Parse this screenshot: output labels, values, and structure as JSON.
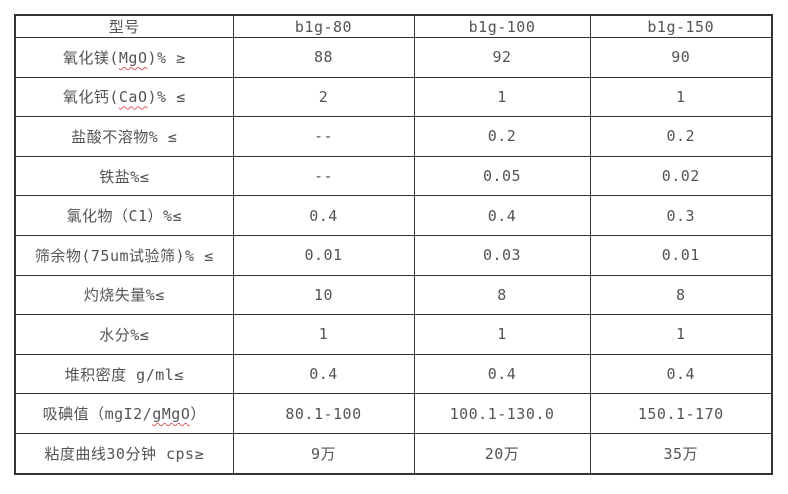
{
  "colors": {
    "border": "#333333",
    "text": "#545454",
    "spellcheck_underline": "#e06060",
    "background": "#ffffff"
  },
  "table": {
    "columns": [
      {
        "label": "型号"
      },
      {
        "label": "b1g-80"
      },
      {
        "label": "b1g-100"
      },
      {
        "label": "b1g-150"
      }
    ],
    "rows": [
      {
        "label": [
          {
            "text": "氧化镁("
          },
          {
            "text": "MgO",
            "spellcheck": true
          },
          {
            "text": ")% ≥"
          }
        ],
        "values": [
          "88",
          "92",
          "90"
        ]
      },
      {
        "label": [
          {
            "text": "氧化钙("
          },
          {
            "text": "CaO",
            "spellcheck": true
          },
          {
            "text": ")% ≤"
          }
        ],
        "values": [
          "2",
          "1",
          "1"
        ]
      },
      {
        "label": [
          {
            "text": "盐酸不溶物% ≤"
          }
        ],
        "values": [
          "--",
          "0.2",
          "0.2"
        ]
      },
      {
        "label": [
          {
            "text": "铁盐%≤"
          }
        ],
        "values": [
          "--",
          "0.05",
          "0.02"
        ]
      },
      {
        "label": [
          {
            "text": "氯化物（C1）%≤"
          }
        ],
        "values": [
          "0.4",
          "0.4",
          "0.3"
        ]
      },
      {
        "label": [
          {
            "text": "筛余物(75um试验筛)% ≤"
          }
        ],
        "values": [
          "0.01",
          "0.03",
          "0.01"
        ]
      },
      {
        "label": [
          {
            "text": "灼烧失量%≤"
          }
        ],
        "values": [
          "10",
          "8",
          "8"
        ]
      },
      {
        "label": [
          {
            "text": "水分%≤"
          }
        ],
        "values": [
          "1",
          "1",
          "1"
        ]
      },
      {
        "label": [
          {
            "text": "堆积密度 g/ml≤"
          }
        ],
        "values": [
          "0.4",
          "0.4",
          "0.4"
        ]
      },
      {
        "label": [
          {
            "text": "吸碘值（mgI2/"
          },
          {
            "text": "gMgO",
            "spellcheck": true
          },
          {
            "text": "）"
          }
        ],
        "values": [
          "80.1-100",
          "100.1-130.0",
          "150.1-170"
        ]
      },
      {
        "label": [
          {
            "text": "粘度曲线30分钟 cps≥"
          }
        ],
        "values": [
          "9万",
          "20万",
          "35万"
        ]
      }
    ]
  }
}
